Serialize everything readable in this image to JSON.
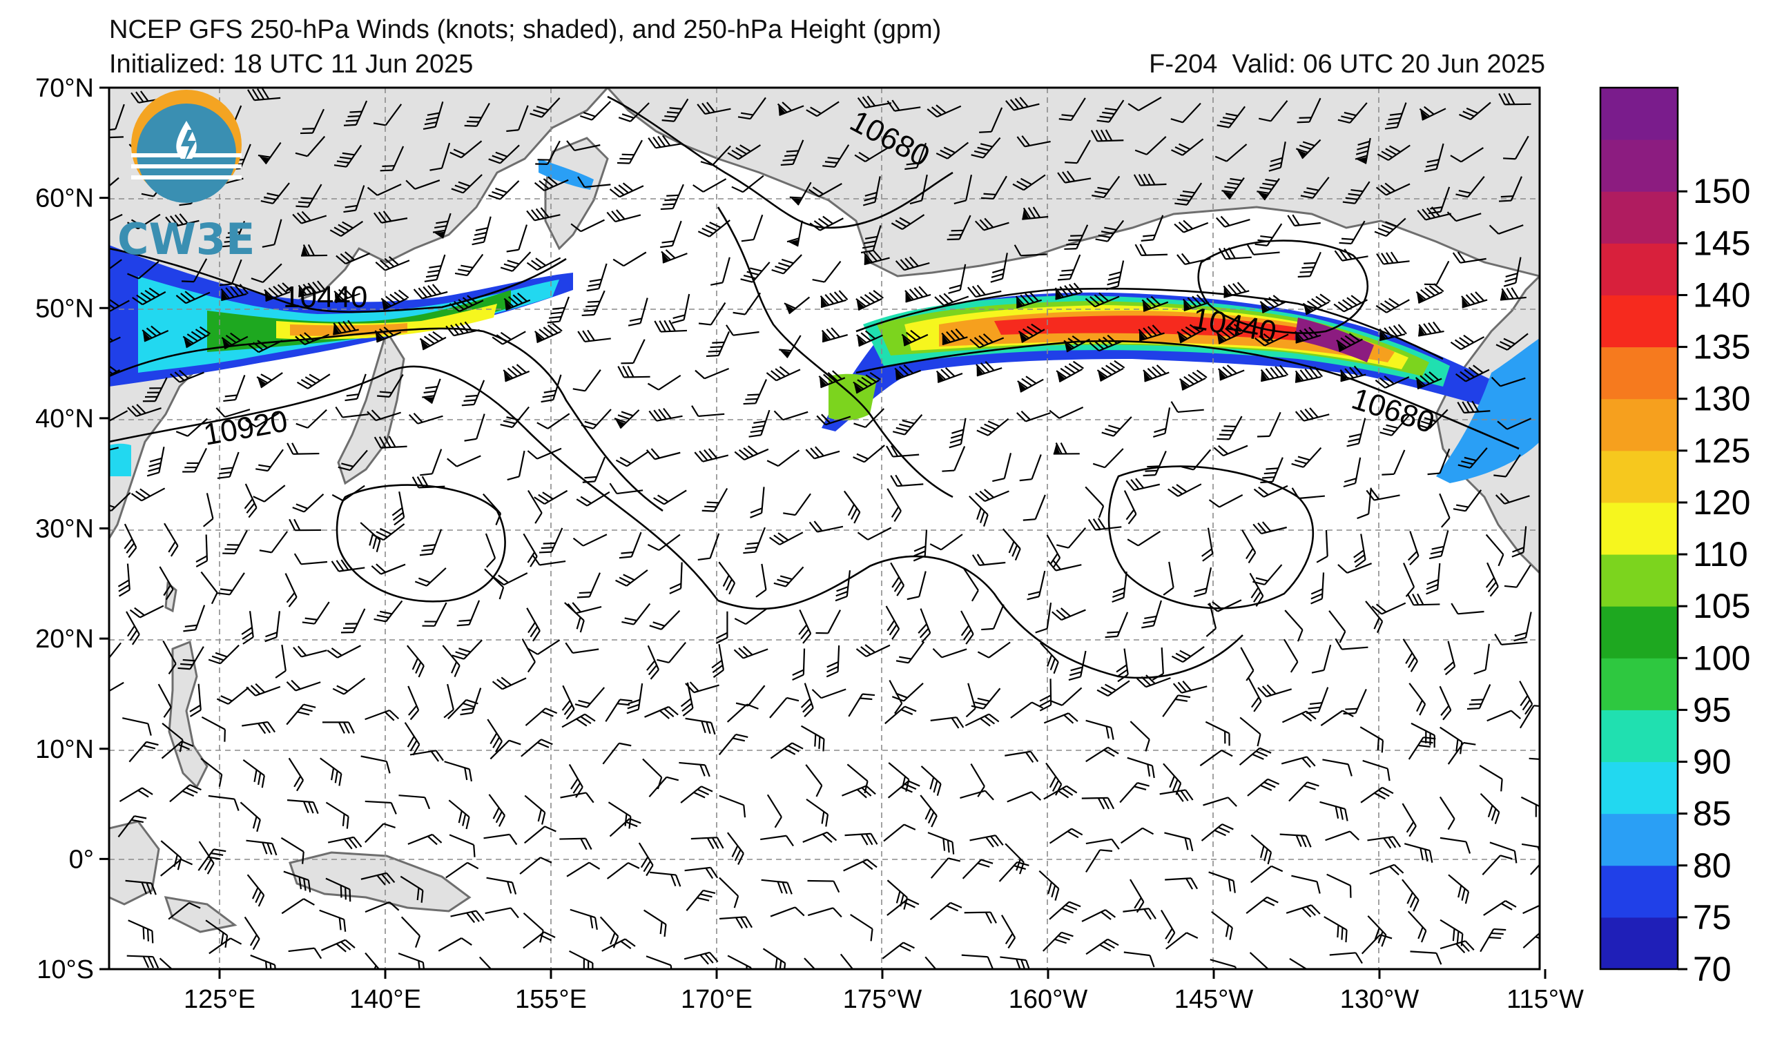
{
  "header": {
    "title": "NCEP GFS 250-hPa Winds (knots; shaded), and 250-hPa Height (gpm)",
    "initialized": "Initialized: 18 UTC 11 Jun 2025",
    "forecast_hour": "F-204",
    "valid": "Valid: 06 UTC 20 Jun 2025"
  },
  "logo": {
    "text": "CW3E"
  },
  "axes": {
    "lat_labels": [
      "70°N",
      "60°N",
      "50°N",
      "40°N",
      "30°N",
      "20°N",
      "10°N",
      "0°",
      "10°S"
    ],
    "lon_labels": [
      "125°E",
      "140°E",
      "155°E",
      "170°E",
      "175°W",
      "160°W",
      "145°W",
      "130°W",
      "115°W"
    ]
  },
  "contours": {
    "labels": [
      "10680",
      "10440",
      "10920",
      "10440",
      "10680"
    ]
  },
  "colorbar": {
    "labels": [
      "70",
      "75",
      "80",
      "85",
      "90",
      "95",
      "100",
      "105",
      "110",
      "120",
      "125",
      "130",
      "135",
      "140",
      "145",
      "150"
    ],
    "colors": [
      "#1f1fb8",
      "#2040e8",
      "#2a9ff5",
      "#22d8f0",
      "#20e0b0",
      "#2ec840",
      "#1ea820",
      "#7cd41e",
      "#f6f61e",
      "#f6c81e",
      "#f6a01e",
      "#f67a1e",
      "#f62a1e",
      "#d8203c",
      "#b01c60",
      "#8c1c80",
      "#7a1c8c"
    ]
  },
  "colors": {
    "land": "#e1e1e1",
    "coast": "#6e6e6e",
    "grid": "#8a8a8a"
  }
}
